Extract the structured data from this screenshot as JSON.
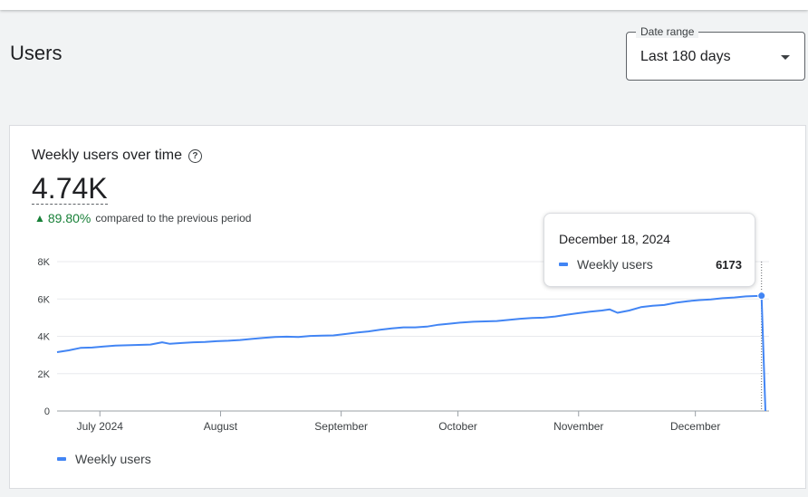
{
  "header": {
    "title": "Users",
    "date_range": {
      "label": "Date range",
      "value": "Last 180 days"
    }
  },
  "card": {
    "title": "Weekly users over time",
    "metric_value": "4.74K",
    "delta_percent": "89.80%",
    "delta_text": "compared to the previous period",
    "legend_label": "Weekly users"
  },
  "tooltip": {
    "date": "December 18, 2024",
    "series": "Weekly users",
    "value": "6173"
  },
  "chart_data": {
    "type": "line",
    "ylim": [
      0,
      8000
    ],
    "y_ticks": [
      0,
      2000,
      4000,
      6000,
      8000
    ],
    "y_tick_labels": [
      "0",
      "2K",
      "4K",
      "6K",
      "8K"
    ],
    "x_range": [
      "2024-06-20",
      "2024-12-19"
    ],
    "x_ticks": [
      "2024-07-01",
      "2024-08-01",
      "2024-09-01",
      "2024-10-01",
      "2024-11-01",
      "2024-12-01"
    ],
    "x_tick_labels": [
      "July 2024",
      "August",
      "September",
      "October",
      "November",
      "December"
    ],
    "series": [
      {
        "name": "Weekly users",
        "color": "#4285f4",
        "points": [
          [
            "2024-06-20",
            3150
          ],
          [
            "2024-06-23",
            3250
          ],
          [
            "2024-06-26",
            3380
          ],
          [
            "2024-06-29",
            3400
          ],
          [
            "2024-07-02",
            3450
          ],
          [
            "2024-07-05",
            3500
          ],
          [
            "2024-07-08",
            3520
          ],
          [
            "2024-07-11",
            3540
          ],
          [
            "2024-07-14",
            3560
          ],
          [
            "2024-07-17",
            3680
          ],
          [
            "2024-07-19",
            3600
          ],
          [
            "2024-07-22",
            3640
          ],
          [
            "2024-07-25",
            3680
          ],
          [
            "2024-07-28",
            3700
          ],
          [
            "2024-07-31",
            3740
          ],
          [
            "2024-08-03",
            3760
          ],
          [
            "2024-08-06",
            3800
          ],
          [
            "2024-08-09",
            3860
          ],
          [
            "2024-08-12",
            3920
          ],
          [
            "2024-08-15",
            3960
          ],
          [
            "2024-08-18",
            3980
          ],
          [
            "2024-08-21",
            3960
          ],
          [
            "2024-08-24",
            4020
          ],
          [
            "2024-08-27",
            4040
          ],
          [
            "2024-08-30",
            4050
          ],
          [
            "2024-09-02",
            4120
          ],
          [
            "2024-09-05",
            4200
          ],
          [
            "2024-09-08",
            4260
          ],
          [
            "2024-09-11",
            4350
          ],
          [
            "2024-09-14",
            4420
          ],
          [
            "2024-09-17",
            4480
          ],
          [
            "2024-09-20",
            4480
          ],
          [
            "2024-09-23",
            4520
          ],
          [
            "2024-09-26",
            4620
          ],
          [
            "2024-09-29",
            4680
          ],
          [
            "2024-10-02",
            4740
          ],
          [
            "2024-10-05",
            4780
          ],
          [
            "2024-10-08",
            4800
          ],
          [
            "2024-10-11",
            4820
          ],
          [
            "2024-10-14",
            4880
          ],
          [
            "2024-10-17",
            4940
          ],
          [
            "2024-10-20",
            4980
          ],
          [
            "2024-10-23",
            5000
          ],
          [
            "2024-10-26",
            5060
          ],
          [
            "2024-10-29",
            5160
          ],
          [
            "2024-11-01",
            5240
          ],
          [
            "2024-11-04",
            5320
          ],
          [
            "2024-11-07",
            5380
          ],
          [
            "2024-11-09",
            5440
          ],
          [
            "2024-11-11",
            5260
          ],
          [
            "2024-11-14",
            5380
          ],
          [
            "2024-11-17",
            5560
          ],
          [
            "2024-11-20",
            5640
          ],
          [
            "2024-11-23",
            5680
          ],
          [
            "2024-11-26",
            5800
          ],
          [
            "2024-11-29",
            5880
          ],
          [
            "2024-12-02",
            5940
          ],
          [
            "2024-12-05",
            5980
          ],
          [
            "2024-12-08",
            6040
          ],
          [
            "2024-12-11",
            6080
          ],
          [
            "2024-12-14",
            6140
          ],
          [
            "2024-12-18",
            6173
          ],
          [
            "2024-12-19",
            0
          ]
        ]
      }
    ],
    "highlight": {
      "date": "2024-12-18",
      "value": 6173
    },
    "grid": true,
    "legend_position": "bottom-left"
  }
}
